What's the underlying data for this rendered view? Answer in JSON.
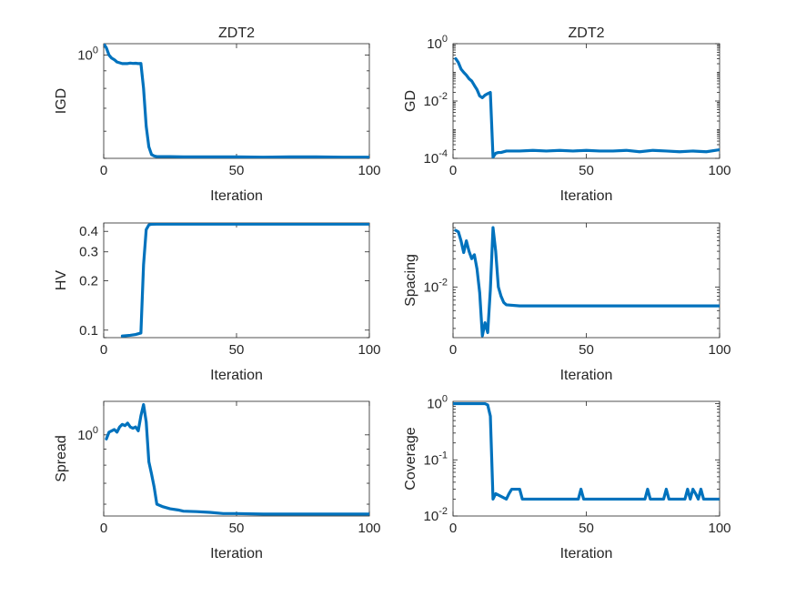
{
  "figure": {
    "line_color": "#0072BD",
    "axis_color": "#262626"
  },
  "chart_data": [
    {
      "type": "line",
      "title": "ZDT2",
      "xlabel": "Iteration",
      "ylabel": "IGD",
      "xscale": "linear",
      "yscale": "log",
      "xlim": [
        0,
        100
      ],
      "ylim": [
        0.5,
        1.08
      ],
      "xticks": [
        0,
        50,
        100
      ],
      "yticks": [
        {
          "value": 1,
          "label": "10",
          "exp": "0"
        }
      ],
      "grid": false,
      "x": [
        0,
        1,
        2,
        3,
        4,
        5,
        6,
        7,
        8,
        9,
        10,
        11,
        12,
        13,
        14,
        15,
        16,
        17,
        18,
        19,
        20,
        25,
        30,
        40,
        50,
        60,
        70,
        80,
        90,
        100
      ],
      "values": [
        1.08,
        1.05,
        1.0,
        0.98,
        0.97,
        0.955,
        0.95,
        0.945,
        0.945,
        0.945,
        0.948,
        0.946,
        0.947,
        0.945,
        0.946,
        0.8,
        0.62,
        0.54,
        0.513,
        0.508,
        0.506,
        0.506,
        0.505,
        0.505,
        0.505,
        0.504,
        0.505,
        0.505,
        0.504,
        0.504
      ]
    },
    {
      "type": "line",
      "title": "ZDT2",
      "xlabel": "Iteration",
      "ylabel": "GD",
      "xscale": "linear",
      "yscale": "log",
      "xlim": [
        0,
        100
      ],
      "ylim": [
        0.0001,
        1
      ],
      "xticks": [
        0,
        50,
        100
      ],
      "yticks": [
        {
          "value": 1,
          "label": "10",
          "exp": "0"
        },
        {
          "value": 0.01,
          "label": "10",
          "exp": "-2"
        },
        {
          "value": 0.0001,
          "label": "10",
          "exp": "-4"
        }
      ],
      "grid": false,
      "x": [
        1,
        2,
        3,
        4,
        5,
        6,
        7,
        8,
        9,
        10,
        11,
        12,
        13,
        14,
        15,
        16,
        17,
        18,
        20,
        25,
        30,
        35,
        40,
        45,
        50,
        55,
        60,
        65,
        70,
        75,
        80,
        85,
        90,
        95,
        100
      ],
      "values": [
        0.3,
        0.22,
        0.13,
        0.1,
        0.08,
        0.06,
        0.05,
        0.035,
        0.025,
        0.015,
        0.013,
        0.016,
        0.018,
        0.02,
        0.00011,
        0.00015,
        0.00016,
        0.00016,
        0.00018,
        0.00018,
        0.00019,
        0.00018,
        0.00019,
        0.00018,
        0.00019,
        0.00018,
        0.00018,
        0.00019,
        0.00017,
        0.00019,
        0.00018,
        0.00017,
        0.00018,
        0.00017,
        0.0002
      ]
    },
    {
      "type": "line",
      "title": "",
      "xlabel": "Iteration",
      "ylabel": "HV",
      "xscale": "linear",
      "yscale": "log",
      "xlim": [
        0,
        100
      ],
      "ylim": [
        0.09,
        0.45
      ],
      "xticks": [
        0,
        50,
        100
      ],
      "yticks": [
        {
          "value": 0.1,
          "label": "0.1"
        },
        {
          "value": 0.2,
          "label": "0.2"
        },
        {
          "value": 0.3,
          "label": "0.3"
        },
        {
          "value": 0.4,
          "label": "0.4"
        }
      ],
      "grid": false,
      "x": [
        7,
        10,
        12,
        14,
        15,
        16,
        17,
        18,
        20,
        30,
        50,
        70,
        100
      ],
      "values": [
        0.092,
        0.093,
        0.094,
        0.096,
        0.25,
        0.41,
        0.438,
        0.442,
        0.443,
        0.443,
        0.443,
        0.443,
        0.443
      ]
    },
    {
      "type": "line",
      "title": "",
      "xlabel": "Iteration",
      "ylabel": "Spacing",
      "xscale": "linear",
      "yscale": "log",
      "xlim": [
        0,
        100
      ],
      "ylim": [
        0.0014,
        0.12
      ],
      "xticks": [
        0,
        50,
        100
      ],
      "yticks": [
        {
          "value": 0.01,
          "label": "10",
          "exp": "-2"
        }
      ],
      "grid": false,
      "x": [
        1,
        2,
        3,
        4,
        5,
        6,
        7,
        8,
        9,
        10,
        11,
        12,
        13,
        14,
        15,
        16,
        17,
        18,
        19,
        20,
        25,
        30,
        40,
        50,
        60,
        70,
        80,
        90,
        100
      ],
      "values": [
        0.09,
        0.085,
        0.06,
        0.038,
        0.06,
        0.04,
        0.03,
        0.035,
        0.02,
        0.008,
        0.0015,
        0.0025,
        0.0017,
        0.009,
        0.1,
        0.04,
        0.01,
        0.007,
        0.0055,
        0.005,
        0.0048,
        0.0048,
        0.0048,
        0.0048,
        0.0048,
        0.0048,
        0.0048,
        0.0048,
        0.0048
      ]
    },
    {
      "type": "line",
      "title": "",
      "xlabel": "Iteration",
      "ylabel": "Spread",
      "xscale": "linear",
      "yscale": "log",
      "xlim": [
        0,
        100
      ],
      "ylim": [
        0.55,
        1.28
      ],
      "xticks": [
        0,
        50,
        100
      ],
      "yticks": [
        {
          "value": 1,
          "label": "10",
          "exp": "0"
        }
      ],
      "grid": false,
      "x": [
        1,
        2,
        3,
        4,
        5,
        6,
        7,
        8,
        9,
        10,
        11,
        12,
        13,
        14,
        15,
        16,
        17,
        18,
        19,
        20,
        22,
        25,
        28,
        30,
        35,
        40,
        45,
        50,
        60,
        70,
        80,
        90,
        100
      ],
      "values": [
        0.97,
        1.02,
        1.03,
        1.04,
        1.02,
        1.06,
        1.08,
        1.07,
        1.09,
        1.06,
        1.05,
        1.06,
        1.03,
        1.15,
        1.25,
        1.1,
        0.82,
        0.75,
        0.68,
        0.6,
        0.59,
        0.58,
        0.575,
        0.57,
        0.568,
        0.565,
        0.56,
        0.56,
        0.558,
        0.558,
        0.558,
        0.558,
        0.558
      ]
    },
    {
      "type": "line",
      "title": "",
      "xlabel": "Iteration",
      "ylabel": "Coverage",
      "xscale": "linear",
      "yscale": "log",
      "xlim": [
        0,
        100
      ],
      "ylim": [
        0.01,
        1.1
      ],
      "xticks": [
        0,
        50,
        100
      ],
      "yticks": [
        {
          "value": 1,
          "label": "10",
          "exp": "0"
        },
        {
          "value": 0.1,
          "label": "10",
          "exp": "-1"
        },
        {
          "value": 0.01,
          "label": "10",
          "exp": "-2"
        }
      ],
      "grid": false,
      "x": [
        0,
        10,
        12,
        13,
        14,
        15,
        16,
        20,
        21,
        22,
        24,
        25,
        26,
        47,
        48,
        49,
        72,
        73,
        74,
        79,
        80,
        81,
        87,
        88,
        89,
        90,
        91,
        92,
        93,
        94,
        95,
        100
      ],
      "values": [
        1,
        1,
        1,
        0.95,
        0.6,
        0.02,
        0.025,
        0.02,
        0.025,
        0.03,
        0.03,
        0.03,
        0.02,
        0.02,
        0.03,
        0.02,
        0.02,
        0.03,
        0.02,
        0.02,
        0.03,
        0.02,
        0.02,
        0.03,
        0.02,
        0.03,
        0.025,
        0.02,
        0.03,
        0.02,
        0.02,
        0.02
      ]
    }
  ]
}
